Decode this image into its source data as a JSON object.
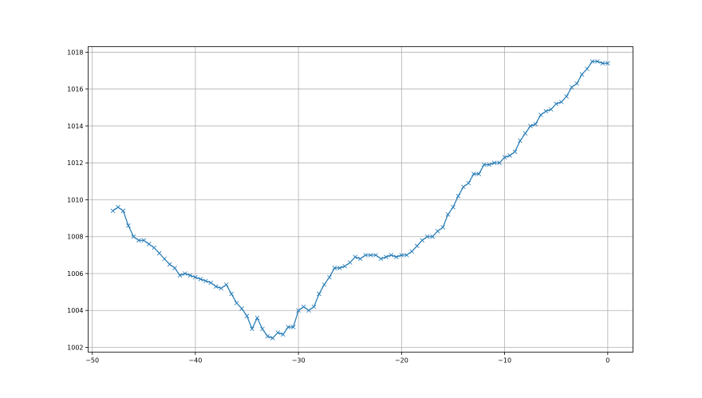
{
  "chart_data": {
    "type": "line",
    "title": "",
    "xlabel": "",
    "ylabel": "",
    "xlim": [
      -50.4,
      2.45
    ],
    "ylim": [
      1001.74,
      1018.3
    ],
    "grid": true,
    "marker": "x",
    "line_color": "#1f77b4",
    "xticks": [
      -50,
      -40,
      -30,
      -20,
      -10,
      0
    ],
    "xtick_labels": [
      "−50",
      "−40",
      "−30",
      "−20",
      "−10",
      "0"
    ],
    "yticks": [
      1002,
      1004,
      1006,
      1008,
      1010,
      1012,
      1014,
      1016,
      1018
    ],
    "ytick_labels": [
      "1002",
      "1004",
      "1006",
      "1008",
      "1010",
      "1012",
      "1014",
      "1016",
      "1018"
    ],
    "series": [
      {
        "x": [
          -48,
          -47.5,
          -47,
          -46.5,
          -46,
          -45.5,
          -45,
          -44.5,
          -44,
          -43.5,
          -43,
          -42.5,
          -42,
          -41.5,
          -41,
          -40.5,
          -40,
          -39.5,
          -39,
          -38.5,
          -38,
          -37.5,
          -37,
          -36.5,
          -36,
          -35.5,
          -35,
          -34.5,
          -34,
          -33.5,
          -33,
          -32.5,
          -32,
          -31.5,
          -31,
          -30.5,
          -30,
          -29.5,
          -29,
          -28.5,
          -28,
          -27.5,
          -27,
          -26.5,
          -26,
          -25.5,
          -25,
          -24.5,
          -24,
          -23.5,
          -23,
          -22.5,
          -22,
          -21.5,
          -21,
          -20.5,
          -20,
          -19.5,
          -19,
          -18.5,
          -18,
          -17.5,
          -17,
          -16.5,
          -16,
          -15.5,
          -15,
          -14.5,
          -14,
          -13.5,
          -13,
          -12.5,
          -12,
          -11.5,
          -11,
          -10.5,
          -10,
          -9.5,
          -9,
          -8.5,
          -8,
          -7.5,
          -7,
          -6.5,
          -6,
          -5.5,
          -5,
          -4.5,
          -4,
          -3.5,
          -3,
          -2.5,
          -2,
          -1.5,
          -1,
          -0.5,
          0
        ],
        "y": [
          1009.4,
          1009.6,
          1009.4,
          1008.6,
          1008.0,
          1007.8,
          1007.8,
          1007.6,
          1007.4,
          1007.1,
          1006.8,
          1006.5,
          1006.3,
          1005.9,
          1006.0,
          1005.9,
          1005.8,
          1005.7,
          1005.6,
          1005.5,
          1005.3,
          1005.2,
          1005.4,
          1004.9,
          1004.4,
          1004.1,
          1003.7,
          1003.0,
          1003.6,
          1003.0,
          1002.6,
          1002.5,
          1002.8,
          1002.7,
          1003.1,
          1003.1,
          1004.0,
          1004.2,
          1004.0,
          1004.2,
          1004.9,
          1005.4,
          1005.8,
          1006.3,
          1006.3,
          1006.4,
          1006.6,
          1006.9,
          1006.8,
          1007.0,
          1007.0,
          1007.0,
          1006.8,
          1006.9,
          1007.0,
          1006.9,
          1007.0,
          1007.0,
          1007.2,
          1007.5,
          1007.8,
          1008.0,
          1008.0,
          1008.3,
          1008.5,
          1009.2,
          1009.6,
          1010.2,
          1010.7,
          1010.9,
          1011.4,
          1011.4,
          1011.9,
          1011.9,
          1012.0,
          1012.0,
          1012.3,
          1012.4,
          1012.6,
          1013.2,
          1013.6,
          1014.0,
          1014.1,
          1014.6,
          1014.8,
          1014.9,
          1015.2,
          1015.3,
          1015.6,
          1016.1,
          1016.3,
          1016.8,
          1017.1,
          1017.5,
          1017.5,
          1017.4,
          1017.4
        ]
      }
    ]
  }
}
